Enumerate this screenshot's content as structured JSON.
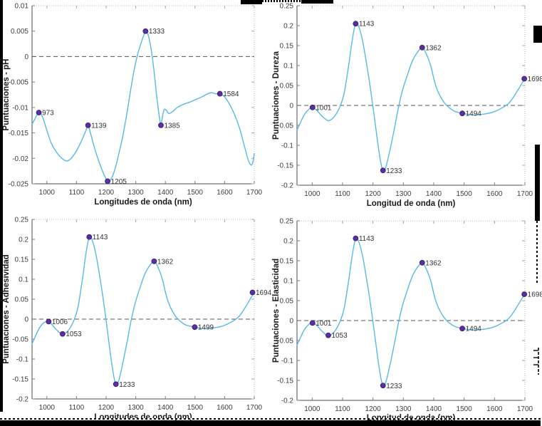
{
  "figure": {
    "description": "2x2 grid of PCA loading line plots vs wavelength",
    "colors": {
      "line": "#56B9E8",
      "marker": "#5B2FA0",
      "marker_edge": "#3E1F77",
      "dashed_zero": "#555555",
      "axis": "#4d4d4d",
      "box_dotted": "#b9b9b9",
      "tick_text": "#3d3d3d",
      "label_text": "#1a1a1a",
      "artifact": "#000000"
    }
  },
  "chart_data": [
    {
      "id": "ph",
      "type": "line",
      "title": "",
      "xlabel": "Longitudes de onda (nm)",
      "ylabel": "Puntuaciones - pH",
      "xlim": [
        950,
        1700
      ],
      "ylim": [
        -0.025,
        0.01
      ],
      "xticks": [
        1000,
        1100,
        1200,
        1300,
        1400,
        1500,
        1600,
        1700
      ],
      "xtick_labels": [
        "1000",
        "1100",
        "1200",
        "1300",
        "1400",
        "1500",
        "1600",
        "1700"
      ],
      "yticks": [
        0.01,
        0.005,
        0,
        -0.005,
        -0.01,
        -0.015,
        -0.02,
        -0.025
      ],
      "ytick_labels": [
        "0.01",
        "0.005",
        "0",
        "-0.005",
        "-0.01",
        "-0.015",
        "-0.02",
        "-0.025"
      ],
      "grid": false,
      "zero_dashed_line": true,
      "legend": null,
      "curve": [
        [
          950,
          -0.0133
        ],
        [
          960,
          -0.0122
        ],
        [
          973,
          -0.011
        ],
        [
          985,
          -0.0118
        ],
        [
          1000,
          -0.0145
        ],
        [
          1015,
          -0.017
        ],
        [
          1035,
          -0.019
        ],
        [
          1055,
          -0.0202
        ],
        [
          1070,
          -0.0205
        ],
        [
          1085,
          -0.0198
        ],
        [
          1100,
          -0.0185
        ],
        [
          1115,
          -0.0168
        ],
        [
          1130,
          -0.0148
        ],
        [
          1139,
          -0.0135
        ],
        [
          1148,
          -0.0152
        ],
        [
          1160,
          -0.0178
        ],
        [
          1175,
          -0.0205
        ],
        [
          1190,
          -0.0228
        ],
        [
          1205,
          -0.0245
        ],
        [
          1215,
          -0.0242
        ],
        [
          1228,
          -0.0225
        ],
        [
          1240,
          -0.0198
        ],
        [
          1255,
          -0.016
        ],
        [
          1270,
          -0.0112
        ],
        [
          1283,
          -0.0065
        ],
        [
          1295,
          -0.0025
        ],
        [
          1308,
          0.0008
        ],
        [
          1320,
          0.003
        ],
        [
          1333,
          0.005
        ],
        [
          1342,
          0.0042
        ],
        [
          1352,
          0.0015
        ],
        [
          1362,
          -0.003
        ],
        [
          1372,
          -0.0085
        ],
        [
          1380,
          -0.012
        ],
        [
          1385,
          -0.0135
        ],
        [
          1390,
          -0.0118
        ],
        [
          1396,
          -0.0104
        ],
        [
          1404,
          -0.0106
        ],
        [
          1412,
          -0.0112
        ],
        [
          1425,
          -0.0108
        ],
        [
          1440,
          -0.01
        ],
        [
          1460,
          -0.0094
        ],
        [
          1480,
          -0.009
        ],
        [
          1500,
          -0.0085
        ],
        [
          1520,
          -0.008
        ],
        [
          1540,
          -0.0074
        ],
        [
          1555,
          -0.0071
        ],
        [
          1570,
          -0.0073
        ],
        [
          1584,
          -0.0073
        ],
        [
          1598,
          -0.0078
        ],
        [
          1615,
          -0.0092
        ],
        [
          1632,
          -0.0112
        ],
        [
          1650,
          -0.014
        ],
        [
          1665,
          -0.0172
        ],
        [
          1678,
          -0.02
        ],
        [
          1688,
          -0.0213
        ],
        [
          1695,
          -0.0208
        ],
        [
          1700,
          -0.019
        ]
      ],
      "annotated_points": [
        {
          "x": 973,
          "y": -0.011,
          "label": "973"
        },
        {
          "x": 1139,
          "y": -0.0135,
          "label": "1139"
        },
        {
          "x": 1205,
          "y": -0.0245,
          "label": "1205"
        },
        {
          "x": 1333,
          "y": 0.005,
          "label": "1333"
        },
        {
          "x": 1385,
          "y": -0.0135,
          "label": "1385"
        },
        {
          "x": 1584,
          "y": -0.0073,
          "label": "1584"
        }
      ]
    },
    {
      "id": "dureza",
      "type": "line",
      "title": "",
      "xlabel": "Longitud de onda (nm)",
      "ylabel": "Puntuaciones - Dureza",
      "xlim": [
        950,
        1700
      ],
      "ylim": [
        -0.2,
        0.25
      ],
      "xticks": [
        1000,
        1100,
        1200,
        1300,
        1400,
        1500,
        1600,
        1700
      ],
      "xtick_labels": [
        "1000",
        "1100",
        "1200",
        "1300",
        "1400",
        "1500",
        "1600",
        "1700"
      ],
      "yticks": [
        0.25,
        0.2,
        0.15,
        0.1,
        0.05,
        0,
        -0.05,
        -0.1,
        -0.15,
        -0.2
      ],
      "ytick_labels": [
        "0.25",
        "0.2",
        "0.15",
        "0.1",
        "0.05",
        "0",
        "-0.05",
        "-0.1",
        "-0.15",
        "-0.2"
      ],
      "grid": false,
      "zero_dashed_line": true,
      "legend": null,
      "curve": [
        [
          950,
          -0.062
        ],
        [
          960,
          -0.045
        ],
        [
          975,
          -0.022
        ],
        [
          990,
          -0.009
        ],
        [
          1001,
          -0.005
        ],
        [
          1015,
          -0.012
        ],
        [
          1030,
          -0.025
        ],
        [
          1045,
          -0.035
        ],
        [
          1053,
          -0.038
        ],
        [
          1065,
          -0.034
        ],
        [
          1080,
          -0.02
        ],
        [
          1093,
          0
        ],
        [
          1105,
          0.03
        ],
        [
          1120,
          0.1
        ],
        [
          1132,
          0.165
        ],
        [
          1143,
          0.205
        ],
        [
          1152,
          0.2
        ],
        [
          1165,
          0.165
        ],
        [
          1180,
          0.1
        ],
        [
          1192,
          0.04
        ],
        [
          1203,
          -0.02
        ],
        [
          1215,
          -0.09
        ],
        [
          1225,
          -0.14
        ],
        [
          1233,
          -0.163
        ],
        [
          1242,
          -0.155
        ],
        [
          1255,
          -0.115
        ],
        [
          1270,
          -0.06
        ],
        [
          1284,
          -0.005
        ],
        [
          1298,
          0.04
        ],
        [
          1315,
          0.08
        ],
        [
          1330,
          0.112
        ],
        [
          1345,
          0.132
        ],
        [
          1362,
          0.145
        ],
        [
          1375,
          0.13
        ],
        [
          1390,
          0.1
        ],
        [
          1400,
          0.068
        ],
        [
          1410,
          0.042
        ],
        [
          1425,
          0.018
        ],
        [
          1440,
          0.002
        ],
        [
          1455,
          -0.008
        ],
        [
          1470,
          -0.015
        ],
        [
          1494,
          -0.02
        ],
        [
          1510,
          -0.022
        ],
        [
          1530,
          -0.024
        ],
        [
          1550,
          -0.023
        ],
        [
          1570,
          -0.021
        ],
        [
          1590,
          -0.018
        ],
        [
          1610,
          -0.012
        ],
        [
          1630,
          -0.004
        ],
        [
          1645,
          0.004
        ],
        [
          1660,
          0.018
        ],
        [
          1675,
          0.036
        ],
        [
          1690,
          0.055
        ],
        [
          1700,
          0.068
        ]
      ],
      "annotated_points": [
        {
          "x": 1001,
          "y": -0.005,
          "label": "1001"
        },
        {
          "x": 1143,
          "y": 0.205,
          "label": "1143"
        },
        {
          "x": 1233,
          "y": -0.163,
          "label": "1233"
        },
        {
          "x": 1362,
          "y": 0.145,
          "label": "1362"
        },
        {
          "x": 1494,
          "y": -0.02,
          "label": "1494"
        },
        {
          "x": 1698,
          "y": 0.067,
          "label": "1698"
        }
      ]
    },
    {
      "id": "adhesividad",
      "type": "line",
      "title": "",
      "xlabel": "Longitudes de onda (nm)",
      "ylabel": "Puntuaciones - Adhesividad",
      "xlim": [
        950,
        1700
      ],
      "ylim": [
        -0.2,
        0.25
      ],
      "xticks": [
        1000,
        1100,
        1200,
        1300,
        1400,
        1500,
        1600,
        1700
      ],
      "xtick_labels": [
        "1000",
        "1100",
        "1200",
        "1300",
        "1400",
        "1500",
        "1600",
        "1700"
      ],
      "yticks": [
        0.25,
        0.2,
        0.15,
        0.1,
        0.05,
        0,
        -0.05,
        -0.1,
        -0.15,
        -0.2
      ],
      "ytick_labels": [
        "0.25",
        "0.2",
        "0.15",
        "0.1",
        "0.05",
        "0",
        "-0.05",
        "-0.1",
        "-0.15",
        "-0.2"
      ],
      "grid": false,
      "zero_dashed_line": true,
      "legend": null,
      "curve": [
        [
          950,
          -0.062
        ],
        [
          960,
          -0.045
        ],
        [
          975,
          -0.022
        ],
        [
          990,
          -0.009
        ],
        [
          1006,
          -0.006
        ],
        [
          1015,
          -0.012
        ],
        [
          1030,
          -0.025
        ],
        [
          1045,
          -0.035
        ],
        [
          1053,
          -0.037
        ],
        [
          1065,
          -0.034
        ],
        [
          1080,
          -0.02
        ],
        [
          1093,
          0
        ],
        [
          1105,
          0.03
        ],
        [
          1120,
          0.1
        ],
        [
          1132,
          0.165
        ],
        [
          1143,
          0.206
        ],
        [
          1152,
          0.2
        ],
        [
          1165,
          0.165
        ],
        [
          1180,
          0.1
        ],
        [
          1192,
          0.04
        ],
        [
          1203,
          -0.02
        ],
        [
          1215,
          -0.09
        ],
        [
          1225,
          -0.14
        ],
        [
          1233,
          -0.163
        ],
        [
          1242,
          -0.155
        ],
        [
          1255,
          -0.115
        ],
        [
          1270,
          -0.06
        ],
        [
          1284,
          -0.005
        ],
        [
          1298,
          0.04
        ],
        [
          1315,
          0.08
        ],
        [
          1330,
          0.112
        ],
        [
          1345,
          0.132
        ],
        [
          1362,
          0.145
        ],
        [
          1375,
          0.13
        ],
        [
          1390,
          0.1
        ],
        [
          1400,
          0.068
        ],
        [
          1410,
          0.042
        ],
        [
          1425,
          0.018
        ],
        [
          1440,
          0.002
        ],
        [
          1455,
          -0.008
        ],
        [
          1470,
          -0.015
        ],
        [
          1499,
          -0.02
        ],
        [
          1510,
          -0.022
        ],
        [
          1530,
          -0.024
        ],
        [
          1550,
          -0.023
        ],
        [
          1570,
          -0.021
        ],
        [
          1590,
          -0.018
        ],
        [
          1610,
          -0.012
        ],
        [
          1630,
          -0.004
        ],
        [
          1645,
          0.004
        ],
        [
          1660,
          0.018
        ],
        [
          1675,
          0.036
        ],
        [
          1690,
          0.055
        ],
        [
          1700,
          0.068
        ]
      ],
      "annotated_points": [
        {
          "x": 1006,
          "y": -0.006,
          "label": "1006"
        },
        {
          "x": 1053,
          "y": -0.037,
          "label": "1053"
        },
        {
          "x": 1143,
          "y": 0.206,
          "label": "1143"
        },
        {
          "x": 1233,
          "y": -0.163,
          "label": "1233"
        },
        {
          "x": 1362,
          "y": 0.145,
          "label": "1362"
        },
        {
          "x": 1499,
          "y": -0.02,
          "label": "1499"
        },
        {
          "x": 1694,
          "y": 0.067,
          "label": "1694"
        }
      ]
    },
    {
      "id": "elasticidad",
      "type": "line",
      "title": "",
      "xlabel": "Longitud de onda (nm)",
      "ylabel": "Puntuaciones - Elasticidad",
      "xlim": [
        950,
        1700
      ],
      "ylim": [
        -0.2,
        0.25
      ],
      "xticks": [
        1000,
        1100,
        1200,
        1300,
        1400,
        1500,
        1600,
        1700
      ],
      "xtick_labels": [
        "1000",
        "1100",
        "1200",
        "1300",
        "1400",
        "1500",
        "1600",
        "1700"
      ],
      "yticks": [
        0.25,
        0.2,
        0.15,
        0.1,
        0.05,
        0,
        -0.05,
        -0.1,
        -0.15,
        -0.2
      ],
      "ytick_labels": [
        "0.25",
        "0.2",
        "0.15",
        "0.1",
        "0.05",
        "0",
        "-0.05",
        "-0.1",
        "-0.15",
        "-0.2"
      ],
      "grid": false,
      "zero_dashed_line": true,
      "legend": null,
      "curve": [
        [
          950,
          -0.062
        ],
        [
          960,
          -0.045
        ],
        [
          975,
          -0.022
        ],
        [
          990,
          -0.009
        ],
        [
          1001,
          -0.006
        ],
        [
          1015,
          -0.012
        ],
        [
          1030,
          -0.025
        ],
        [
          1045,
          -0.035
        ],
        [
          1053,
          -0.037
        ],
        [
          1065,
          -0.034
        ],
        [
          1080,
          -0.02
        ],
        [
          1093,
          0
        ],
        [
          1105,
          0.03
        ],
        [
          1120,
          0.1
        ],
        [
          1132,
          0.165
        ],
        [
          1143,
          0.206
        ],
        [
          1152,
          0.2
        ],
        [
          1165,
          0.165
        ],
        [
          1180,
          0.1
        ],
        [
          1192,
          0.04
        ],
        [
          1203,
          -0.02
        ],
        [
          1215,
          -0.09
        ],
        [
          1225,
          -0.14
        ],
        [
          1233,
          -0.163
        ],
        [
          1242,
          -0.155
        ],
        [
          1255,
          -0.115
        ],
        [
          1270,
          -0.06
        ],
        [
          1284,
          -0.005
        ],
        [
          1298,
          0.04
        ],
        [
          1315,
          0.08
        ],
        [
          1330,
          0.112
        ],
        [
          1345,
          0.132
        ],
        [
          1362,
          0.145
        ],
        [
          1375,
          0.13
        ],
        [
          1390,
          0.1
        ],
        [
          1400,
          0.068
        ],
        [
          1410,
          0.042
        ],
        [
          1425,
          0.018
        ],
        [
          1440,
          0.002
        ],
        [
          1455,
          -0.008
        ],
        [
          1470,
          -0.015
        ],
        [
          1494,
          -0.02
        ],
        [
          1510,
          -0.022
        ],
        [
          1530,
          -0.024
        ],
        [
          1550,
          -0.023
        ],
        [
          1570,
          -0.021
        ],
        [
          1590,
          -0.018
        ],
        [
          1610,
          -0.012
        ],
        [
          1630,
          -0.004
        ],
        [
          1645,
          0.004
        ],
        [
          1660,
          0.018
        ],
        [
          1675,
          0.036
        ],
        [
          1690,
          0.055
        ],
        [
          1700,
          0.066
        ]
      ],
      "annotated_points": [
        {
          "x": 1001,
          "y": -0.006,
          "label": "1001"
        },
        {
          "x": 1053,
          "y": -0.037,
          "label": "1053"
        },
        {
          "x": 1143,
          "y": 0.206,
          "label": "1143"
        },
        {
          "x": 1233,
          "y": -0.163,
          "label": "1233"
        },
        {
          "x": 1362,
          "y": 0.145,
          "label": "1362"
        },
        {
          "x": 1494,
          "y": -0.02,
          "label": "1494"
        },
        {
          "x": 1698,
          "y": 0.066,
          "label": "1698"
        }
      ]
    }
  ]
}
